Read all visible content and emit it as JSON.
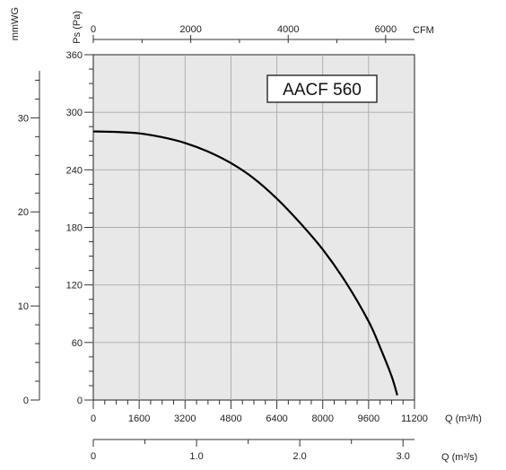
{
  "chart_data": {
    "type": "line",
    "title": "AACF 560",
    "xlabel": "Q (m³/h)",
    "ylabel": "Ps (Pa)",
    "top_axis_label": "CFM",
    "left_axis_label": "mmWG",
    "bottom_axis2_label": "Q (m³/s)",
    "xlim": [
      0,
      11200
    ],
    "ylim": [
      0,
      360
    ],
    "x_ticks": [
      "0",
      "1600",
      "3200",
      "4800",
      "6400",
      "8000",
      "9600",
      "11200"
    ],
    "y_ticks": [
      "0",
      "60",
      "120",
      "180",
      "240",
      "300",
      "360"
    ],
    "top_ticks": [
      "0",
      "2000",
      "4000",
      "6000"
    ],
    "mmwg_ticks": [
      "0",
      "10",
      "20",
      "30"
    ],
    "ms_ticks": [
      "0",
      "1.0",
      "2.0",
      "3.0"
    ],
    "grid": true,
    "series": [
      {
        "x": [
          0,
          800,
          1600,
          2400,
          3200,
          4000,
          4800,
          5600,
          6400,
          7200,
          8000,
          8800,
          9600,
          10000,
          10400,
          10600
        ],
        "y": [
          280,
          279.5,
          278,
          274,
          268,
          259,
          247,
          231,
          210,
          185,
          157,
          123,
          82,
          55,
          25,
          5
        ]
      }
    ],
    "colors": {
      "line": "#000000",
      "grid": "#aaaaaa",
      "plot_bg": "#e8e8e8"
    }
  }
}
